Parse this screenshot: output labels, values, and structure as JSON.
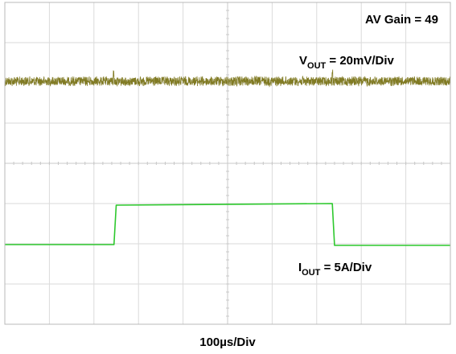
{
  "chart_data": {
    "type": "line",
    "title": "",
    "xlabel": "100µs/Div",
    "ylabel": "",
    "grid": true,
    "x_divisions": 10,
    "y_divisions": 8,
    "x_unit": "µs",
    "x_per_div": 100,
    "annotations": {
      "gain": "AV Gain = 49",
      "vout_main": "V",
      "vout_sub": "OUT",
      "vout_scale": " = 20mV/Div",
      "iout_main": "I",
      "iout_sub": "OUT",
      "iout_scale": " = 5A/Div"
    },
    "series": [
      {
        "name": "V",
        "color": "#7a7418",
        "kind": "noise",
        "x": [
          0,
          1000
        ],
        "div_level": 6.04,
        "noise_pp_div": 0.22,
        "glitches_us": [
          244,
          735
        ]
      },
      {
        "name": "I",
        "color": "#2dc82d",
        "kind": "step",
        "x": [
          0,
          245,
          250,
          735,
          740,
          1000
        ],
        "div_level": [
          1.98,
          1.98,
          2.96,
          3.0,
          1.96,
          1.96
        ]
      }
    ]
  }
}
